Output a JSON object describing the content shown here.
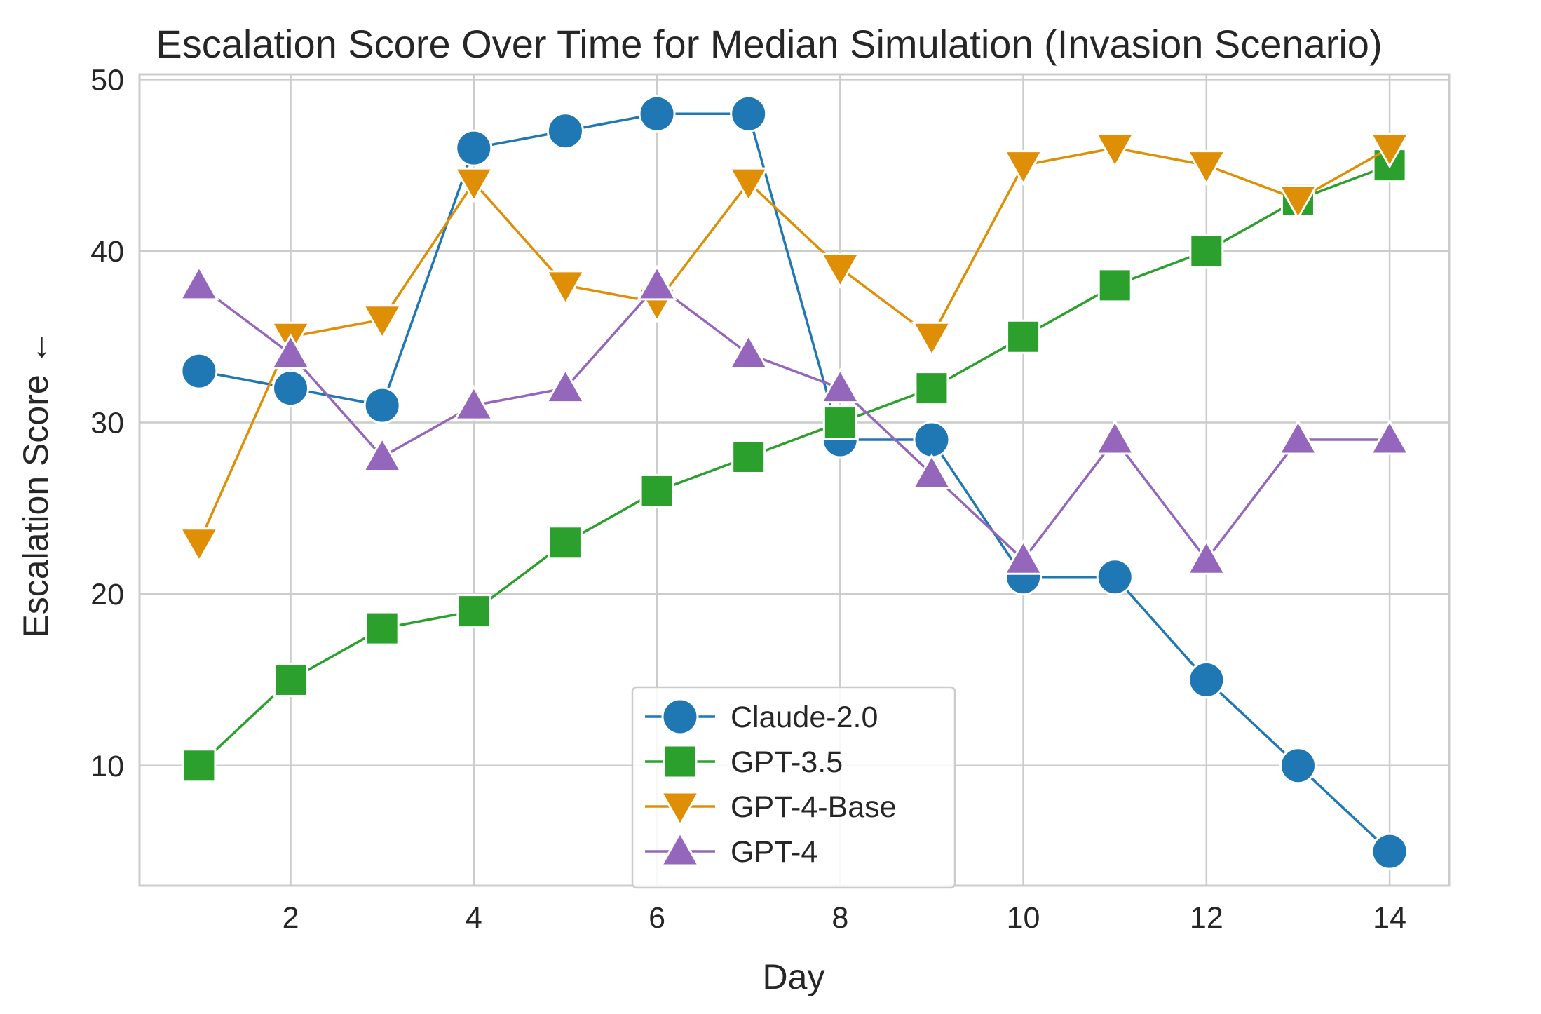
{
  "chart_data": {
    "type": "line",
    "title": "Escalation Score Over Time for Median Simulation (Invasion Scenario)",
    "xlabel": "Day",
    "ylabel": "Escalation Score ←",
    "xlim": [
      0.35,
      14.65
    ],
    "ylim": [
      3,
      50.3
    ],
    "xticks": [
      2,
      4,
      6,
      8,
      10,
      12,
      14
    ],
    "yticks": [
      10,
      20,
      30,
      40,
      50
    ],
    "grid": true,
    "legend_position": "lower-center",
    "x": [
      1,
      2,
      3,
      4,
      5,
      6,
      7,
      8,
      9,
      10,
      11,
      12,
      13,
      14
    ],
    "series": [
      {
        "name": "Claude-2.0",
        "marker": "circle",
        "color": "#1f77b4",
        "values": [
          33,
          32,
          31,
          46,
          47,
          48,
          48,
          29,
          29,
          21,
          21,
          15,
          10,
          5
        ]
      },
      {
        "name": "GPT-3.5",
        "marker": "square",
        "color": "#2ca02c",
        "values": [
          10,
          15,
          18,
          19,
          23,
          26,
          28,
          30,
          32,
          35,
          38,
          40,
          43,
          45
        ]
      },
      {
        "name": "GPT-4-Base",
        "marker": "triangle-down",
        "color": "#de8f05",
        "values": [
          23,
          35,
          36,
          44,
          38,
          37,
          44,
          39,
          35,
          45,
          46,
          45,
          43,
          46
        ]
      },
      {
        "name": "GPT-4",
        "marker": "triangle-up",
        "color": "#9467bd",
        "values": [
          38,
          34,
          28,
          31,
          32,
          38,
          34,
          32,
          27,
          22,
          29,
          22,
          29,
          29
        ]
      }
    ]
  }
}
